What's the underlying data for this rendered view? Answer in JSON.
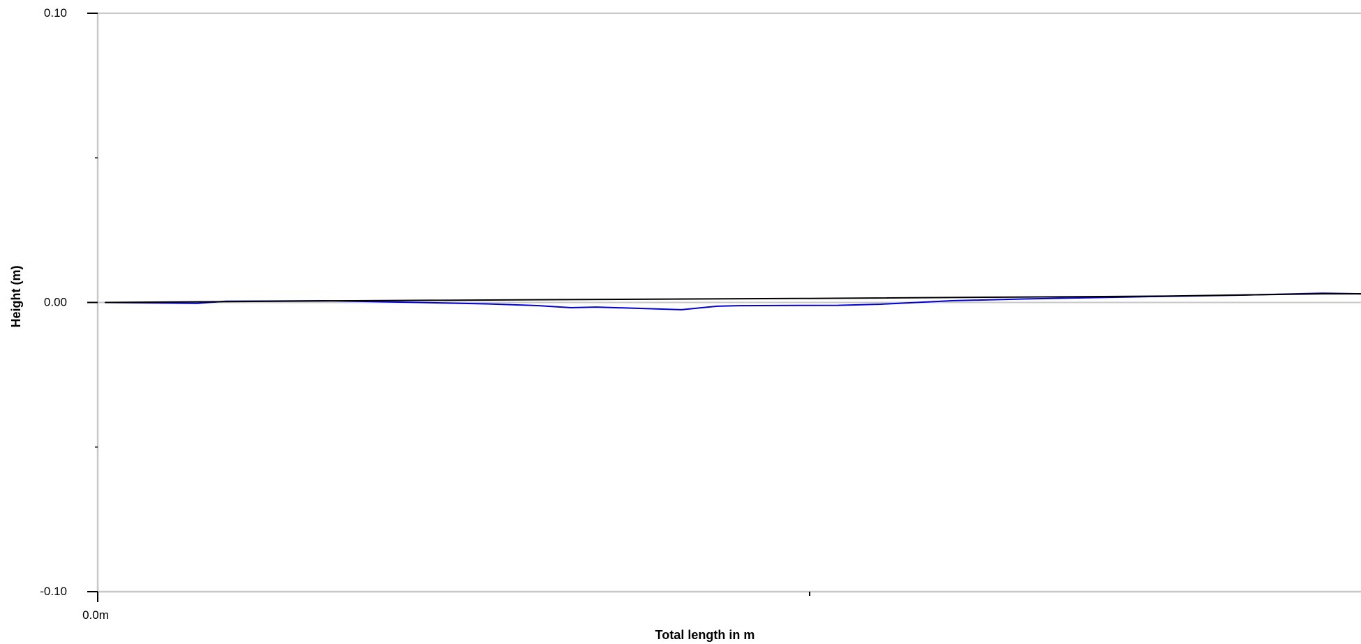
{
  "chart_data": {
    "type": "line",
    "title": "",
    "xlabel": "Total length in m",
    "ylabel": "Height (m)",
    "ylim": [
      -0.1,
      0.1
    ],
    "xlim": [
      0,
      1.775
    ],
    "y_ticks": [
      {
        "value": 0.1,
        "label": "0.10"
      },
      {
        "value": 0.05,
        "label": ""
      },
      {
        "value": 0.0,
        "label": "0.00"
      },
      {
        "value": -0.05,
        "label": ""
      },
      {
        "value": -0.1,
        "label": "-0.10"
      }
    ],
    "x_ticks": [
      {
        "value": 0,
        "label": "0.0m"
      },
      {
        "value": 1.0,
        "label": ""
      }
    ],
    "zero_line": true,
    "grid": false,
    "colors": {
      "axis": "#c8c8c8",
      "tick": "#000000",
      "zero_line": "#c8c8c8"
    },
    "series": [
      {
        "color": "#0000d0",
        "points": [
          [
            0.01,
            0.0
          ],
          [
            0.14,
            -0.0003
          ],
          [
            0.18,
            0.0004
          ],
          [
            0.32,
            0.0006
          ],
          [
            0.45,
            0.0
          ],
          [
            0.55,
            -0.0005
          ],
          [
            0.62,
            -0.0011
          ],
          [
            0.665,
            -0.0018
          ],
          [
            0.7,
            -0.0016
          ],
          [
            0.82,
            -0.0025
          ],
          [
            0.87,
            -0.0013
          ],
          [
            0.9,
            -0.0011
          ],
          [
            1.04,
            -0.001
          ],
          [
            1.1,
            -0.0006
          ],
          [
            1.2,
            0.0006
          ],
          [
            1.3,
            0.0012
          ],
          [
            1.45,
            0.0019
          ],
          [
            1.6,
            0.0025
          ],
          [
            1.72,
            0.0032
          ],
          [
            1.775,
            0.003
          ]
        ]
      },
      {
        "color": "#000000",
        "points": [
          [
            0.01,
            0.0
          ],
          [
            0.35,
            0.0006
          ],
          [
            1.0,
            0.0014
          ],
          [
            1.5,
            0.0022
          ],
          [
            1.72,
            0.003
          ],
          [
            1.775,
            0.003
          ]
        ]
      }
    ]
  }
}
